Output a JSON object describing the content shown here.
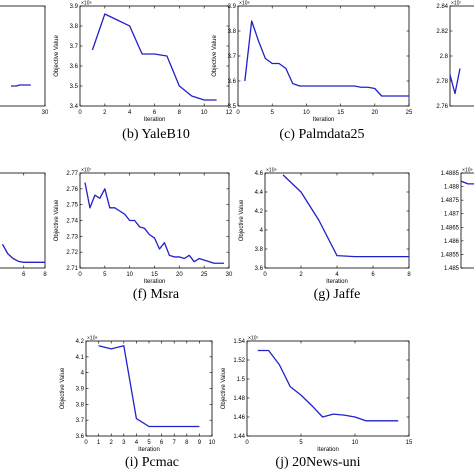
{
  "chart_data": [
    {
      "type": "line",
      "panel": "a",
      "caption": "",
      "xlabel": "",
      "ylabel": "",
      "xlim": [
        0,
        30
      ],
      "xticks": [
        "30"
      ],
      "ylim": [
        0,
        1
      ],
      "yticks": [],
      "yexponent": "",
      "x": [
        18,
        19,
        20,
        21,
        22,
        23,
        24,
        25
      ],
      "y": [
        0.2,
        0.2,
        0.2,
        0.21,
        0.21,
        0.21,
        0.21,
        0.21
      ]
    },
    {
      "type": "line",
      "panel": "b",
      "caption": "(b) YaleB10",
      "xlabel": "Iteration",
      "ylabel": "Objective Value",
      "xlim": [
        0,
        12
      ],
      "xticks": [
        "0",
        "2",
        "4",
        "6",
        "8",
        "10",
        "12"
      ],
      "ylim": [
        3.4,
        3.9
      ],
      "yticks": [
        "3.4",
        "3.5",
        "3.6",
        "3.7",
        "3.8",
        "3.9"
      ],
      "yexponent": "×10⁸",
      "x": [
        1,
        2,
        3,
        4,
        5,
        6,
        7,
        8,
        9,
        10,
        11
      ],
      "y": [
        3.68,
        3.86,
        3.83,
        3.8,
        3.66,
        3.66,
        3.65,
        3.5,
        3.45,
        3.43,
        3.43
      ]
    },
    {
      "type": "line",
      "panel": "c",
      "caption": "(c) Palmdata25",
      "xlabel": "Iteration",
      "ylabel": "Objective Value",
      "xlim": [
        0,
        25
      ],
      "xticks": [
        "0",
        "5",
        "10",
        "15",
        "20",
        "25"
      ],
      "ylim": [
        3.5,
        3.9
      ],
      "yticks": [
        "3.5",
        "3.6",
        "3.7",
        "3.8",
        "3.9"
      ],
      "yexponent": "×10⁸",
      "x": [
        1,
        2,
        3,
        4,
        5,
        6,
        7,
        8,
        9,
        10,
        11,
        12,
        13,
        14,
        15,
        16,
        17,
        18,
        19,
        20,
        21,
        22,
        23,
        24,
        25
      ],
      "y": [
        3.6,
        3.84,
        3.76,
        3.69,
        3.67,
        3.67,
        3.65,
        3.59,
        3.58,
        3.58,
        3.58,
        3.58,
        3.58,
        3.58,
        3.58,
        3.58,
        3.58,
        3.575,
        3.575,
        3.57,
        3.54,
        3.54,
        3.54,
        3.54,
        3.54
      ]
    },
    {
      "type": "line",
      "panel": "d",
      "caption": "",
      "xlabel": "",
      "ylabel": "",
      "xlim": [
        0,
        30
      ],
      "xticks": [],
      "ylim": [
        2.76,
        2.84
      ],
      "yticks": [
        "2.76",
        "2.78",
        "2.8",
        "2.82",
        "2.84"
      ],
      "yexponent": "×10⁷",
      "x": [
        0,
        1,
        2
      ],
      "y": [
        2.785,
        2.77,
        2.79
      ]
    },
    {
      "type": "line",
      "panel": "e",
      "caption": "",
      "xlabel": "",
      "ylabel": "",
      "xlim": [
        0,
        8
      ],
      "xticks": [
        "6",
        "8"
      ],
      "ylim": [
        0,
        1
      ],
      "yticks": [],
      "yexponent": "",
      "x": [
        4,
        4.5,
        5,
        5.5,
        6,
        7,
        8
      ],
      "y": [
        0.25,
        0.15,
        0.1,
        0.07,
        0.06,
        0.06,
        0.06
      ]
    },
    {
      "type": "line",
      "panel": "f",
      "caption": "(f) Msra",
      "xlabel": "Iteration",
      "ylabel": "Objective Value",
      "xlim": [
        0,
        30
      ],
      "xticks": [
        "0",
        "5",
        "10",
        "15",
        "20",
        "25",
        "30"
      ],
      "ylim": [
        2.71,
        2.77
      ],
      "yticks": [
        "2.71",
        "2.72",
        "2.73",
        "2.74",
        "2.75",
        "2.76",
        "2.77"
      ],
      "yexponent": "×10⁷",
      "x": [
        1,
        2,
        3,
        4,
        5,
        6,
        7,
        8,
        9,
        10,
        11,
        12,
        13,
        14,
        15,
        16,
        17,
        18,
        19,
        20,
        21,
        22,
        23,
        24,
        25,
        26,
        27,
        28,
        29
      ],
      "y": [
        2.764,
        2.748,
        2.756,
        2.754,
        2.76,
        2.748,
        2.748,
        2.746,
        2.744,
        2.74,
        2.74,
        2.736,
        2.735,
        2.731,
        2.729,
        2.722,
        2.726,
        2.718,
        2.717,
        2.717,
        2.716,
        2.718,
        2.714,
        2.716,
        2.715,
        2.714,
        2.713,
        2.713,
        2.713
      ]
    },
    {
      "type": "line",
      "panel": "g",
      "caption": "(g) Jaffe",
      "xlabel": "Iteration",
      "ylabel": "Objective Value",
      "xlim": [
        0,
        8
      ],
      "xticks": [
        "0",
        "2",
        "4",
        "6",
        "8"
      ],
      "ylim": [
        3.6,
        4.6
      ],
      "yticks": [
        "3.6",
        "3.8",
        "4",
        "4.2",
        "4.4",
        "4.6"
      ],
      "yexponent": "×10⁸",
      "x": [
        1,
        2,
        3,
        4,
        5,
        6,
        7,
        8
      ],
      "y": [
        4.58,
        4.4,
        4.1,
        3.73,
        3.72,
        3.72,
        3.72,
        3.72
      ]
    },
    {
      "type": "line",
      "panel": "h",
      "caption": "",
      "xlabel": "",
      "ylabel": "",
      "xlim": [
        0,
        10
      ],
      "xticks": [],
      "ylim": [
        1.485,
        1.4885
      ],
      "yticks": [
        "1.485",
        "1.4855",
        "1.486",
        "1.4865",
        "1.487",
        "1.4875",
        "1.488",
        "1.4885"
      ],
      "yexponent": "×10⁸",
      "x": [
        0,
        0.5,
        1
      ],
      "y": [
        1.4882,
        1.4881,
        1.4881
      ]
    },
    {
      "type": "line",
      "panel": "i",
      "caption": "(i) Pcmac",
      "xlabel": "Iteration",
      "ylabel": "Objective Value",
      "xlim": [
        0,
        10
      ],
      "xticks": [
        "0",
        "1",
        "2",
        "3",
        "4",
        "5",
        "6",
        "7",
        "8",
        "9",
        "10"
      ],
      "ylim": [
        3.6,
        4.2
      ],
      "yticks": [
        "3.6",
        "3.7",
        "3.8",
        "3.9",
        "4",
        "4.1",
        "4.2"
      ],
      "yexponent": "×10⁸",
      "x": [
        1,
        2,
        3,
        4,
        5,
        6,
        7,
        8,
        9
      ],
      "y": [
        4.17,
        4.15,
        4.17,
        3.71,
        3.66,
        3.66,
        3.66,
        3.66,
        3.66
      ]
    },
    {
      "type": "line",
      "panel": "j",
      "caption": "(j) 20News-uni",
      "xlabel": "Iteration",
      "ylabel": "Objective Value",
      "xlim": [
        0,
        15
      ],
      "xticks": [
        "0",
        "5",
        "10",
        "15"
      ],
      "ylim": [
        1.44,
        1.54
      ],
      "yticks": [
        "1.44",
        "1.46",
        "1.48",
        "1.5",
        "1.52",
        "1.54"
      ],
      "yexponent": "×10⁷",
      "x": [
        1,
        2,
        3,
        4,
        5,
        6,
        7,
        8,
        9,
        10,
        11,
        12,
        13,
        14
      ],
      "y": [
        1.53,
        1.53,
        1.515,
        1.492,
        1.483,
        1.472,
        1.46,
        1.463,
        1.462,
        1.46,
        1.456,
        1.456,
        1.456,
        1.456
      ]
    }
  ],
  "colors": {
    "line": "#2121c8",
    "axis": "#000000"
  }
}
